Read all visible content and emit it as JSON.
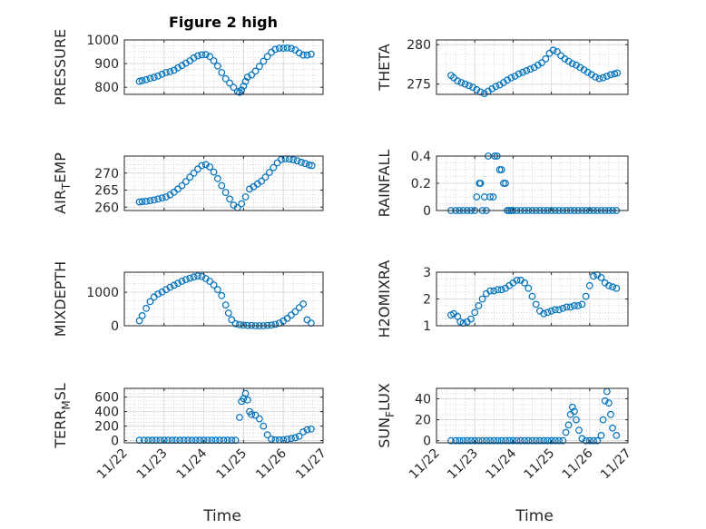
{
  "figure": {
    "title": "Figure 2 high",
    "marker_color": "#0072BD",
    "x_axis": {
      "label": "Time",
      "ticks": [
        "11/22",
        "11/23",
        "11/24",
        "11/25",
        "11/26",
        "11/27"
      ],
      "range": [
        22,
        27
      ]
    }
  },
  "chart_data": [
    {
      "type": "scatter",
      "ylabel": "PRESSURE",
      "ylim": [
        770,
        1000
      ],
      "yticks": [
        800,
        900,
        1000
      ],
      "xlim": [
        22,
        27
      ],
      "x": [
        22.38,
        22.45,
        22.55,
        22.65,
        22.75,
        22.85,
        22.95,
        23.05,
        23.15,
        23.25,
        23.35,
        23.45,
        23.55,
        23.65,
        23.75,
        23.85,
        23.95,
        24.05,
        24.15,
        24.25,
        24.35,
        24.45,
        24.55,
        24.65,
        24.75,
        24.85,
        24.9,
        24.95,
        25.0,
        25.05,
        25.1,
        25.2,
        25.3,
        25.4,
        25.5,
        25.6,
        25.7,
        25.8,
        25.9,
        26.0,
        26.1,
        26.2,
        26.3,
        26.4,
        26.5,
        26.6,
        26.7
      ],
      "y": [
        825,
        828,
        832,
        838,
        842,
        848,
        855,
        862,
        866,
        872,
        882,
        892,
        902,
        912,
        924,
        933,
        937,
        938,
        930,
        912,
        890,
        862,
        836,
        818,
        800,
        782,
        778,
        788,
        805,
        825,
        843,
        852,
        868,
        888,
        910,
        930,
        948,
        960,
        965,
        965,
        966,
        964,
        958,
        945,
        936,
        936,
        940
      ]
    },
    {
      "type": "scatter",
      "ylabel": "THETA",
      "ylim": [
        273.7,
        280.6
      ],
      "yticks": [
        275,
        280
      ],
      "xlim": [
        22,
        27
      ],
      "x": [
        22.38,
        22.45,
        22.55,
        22.65,
        22.75,
        22.85,
        22.95,
        23.05,
        23.15,
        23.25,
        23.35,
        23.45,
        23.55,
        23.65,
        23.75,
        23.85,
        23.95,
        24.05,
        24.15,
        24.25,
        24.35,
        24.45,
        24.55,
        24.65,
        24.75,
        24.85,
        24.95,
        25.05,
        25.15,
        25.25,
        25.35,
        25.45,
        25.55,
        25.65,
        25.75,
        25.85,
        25.95,
        26.05,
        26.15,
        26.25,
        26.35,
        26.45,
        26.55,
        26.65,
        26.72
      ],
      "y": [
        276.1,
        275.8,
        275.4,
        275.2,
        275.0,
        274.8,
        274.6,
        274.3,
        274.0,
        273.8,
        274.1,
        274.4,
        274.7,
        274.9,
        275.2,
        275.5,
        275.8,
        276.0,
        276.3,
        276.5,
        276.7,
        276.9,
        277.1,
        277.4,
        277.7,
        278.2,
        278.9,
        279.3,
        279.1,
        278.6,
        278.2,
        277.9,
        277.6,
        277.4,
        277.1,
        276.8,
        276.5,
        276.2,
        275.9,
        275.7,
        275.8,
        276.0,
        276.2,
        276.3,
        276.4
      ]
    },
    {
      "type": "scatter",
      "ylabel": "AIR_TEMP",
      "ylim": [
        259,
        275
      ],
      "yticks": [
        260,
        265,
        270
      ],
      "xlim": [
        22,
        27
      ],
      "x": [
        22.38,
        22.45,
        22.55,
        22.65,
        22.75,
        22.85,
        22.95,
        23.05,
        23.15,
        23.25,
        23.35,
        23.45,
        23.55,
        23.65,
        23.75,
        23.85,
        23.95,
        24.05,
        24.15,
        24.25,
        24.35,
        24.45,
        24.55,
        24.65,
        24.75,
        24.85,
        24.95,
        25.05,
        25.15,
        25.25,
        25.35,
        25.45,
        25.55,
        25.65,
        25.75,
        25.85,
        25.95,
        26.05,
        26.15,
        26.25,
        26.35,
        26.45,
        26.55,
        26.65,
        26.72
      ],
      "y": [
        261.5,
        261.6,
        261.7,
        261.9,
        262.1,
        262.4,
        262.7,
        263.0,
        263.6,
        264.4,
        265.3,
        266.3,
        267.5,
        268.8,
        270.0,
        271.2,
        272.2,
        272.5,
        271.8,
        270.3,
        268.4,
        266.3,
        264.3,
        262.4,
        260.6,
        259.8,
        261.0,
        263.0,
        265.3,
        266.0,
        266.8,
        267.6,
        268.8,
        270.2,
        271.6,
        273.0,
        274.0,
        274.2,
        274.1,
        273.9,
        273.6,
        273.2,
        272.8,
        272.4,
        272.2
      ]
    },
    {
      "type": "scatter",
      "ylabel": "RAINFALL",
      "ylim": [
        0,
        0.4
      ],
      "yticks": [
        0,
        0.2,
        0.4
      ],
      "xlim": [
        22,
        27
      ],
      "x": [
        22.38,
        22.5,
        22.6,
        22.7,
        22.8,
        22.9,
        23.0,
        23.05,
        23.12,
        23.15,
        23.2,
        23.25,
        23.3,
        23.35,
        23.4,
        23.48,
        23.52,
        23.58,
        23.65,
        23.7,
        23.75,
        23.8,
        23.85,
        23.9,
        23.95,
        24.0,
        24.1,
        24.2,
        24.3,
        24.4,
        24.5,
        24.6,
        24.7,
        24.8,
        24.9,
        25.0,
        25.1,
        25.2,
        25.3,
        25.4,
        25.5,
        25.6,
        25.7,
        25.8,
        25.9,
        26.0,
        26.1,
        26.2,
        26.3,
        26.4,
        26.5,
        26.6,
        26.7
      ],
      "y": [
        0,
        0,
        0,
        0,
        0,
        0,
        0,
        0.1,
        0.2,
        0.2,
        0,
        0.1,
        0,
        0.4,
        0.1,
        0.1,
        0.4,
        0.4,
        0.3,
        0.3,
        0.2,
        0.2,
        0,
        0,
        0,
        0,
        0,
        0,
        0,
        0,
        0,
        0,
        0,
        0,
        0,
        0,
        0,
        0,
        0,
        0,
        0,
        0,
        0,
        0,
        0,
        0,
        0,
        0,
        0,
        0,
        0,
        0,
        0
      ]
    },
    {
      "type": "scatter",
      "ylabel": "MIXDEPTH",
      "ylim": [
        0,
        1600
      ],
      "yticks": [
        0,
        1000
      ],
      "xlim": [
        22,
        27
      ],
      "x": [
        22.38,
        22.45,
        22.55,
        22.65,
        22.75,
        22.85,
        22.95,
        23.05,
        23.15,
        23.25,
        23.35,
        23.45,
        23.55,
        23.65,
        23.75,
        23.85,
        23.95,
        24.05,
        24.15,
        24.25,
        24.35,
        24.45,
        24.55,
        24.62,
        24.7,
        24.8,
        24.9,
        25.0,
        25.1,
        25.2,
        25.3,
        25.4,
        25.5,
        25.6,
        25.7,
        25.8,
        25.9,
        26.0,
        26.1,
        26.2,
        26.3,
        26.4,
        26.5,
        26.6,
        26.7
      ],
      "y": [
        150,
        300,
        520,
        720,
        860,
        950,
        1010,
        1080,
        1150,
        1210,
        1270,
        1330,
        1380,
        1420,
        1460,
        1490,
        1470,
        1410,
        1330,
        1220,
        1080,
        900,
        620,
        380,
        180,
        60,
        30,
        20,
        10,
        10,
        0,
        0,
        0,
        10,
        20,
        40,
        80,
        140,
        220,
        320,
        420,
        540,
        650,
        180,
        80
      ]
    },
    {
      "type": "scatter",
      "ylabel": "H2OMIXRA",
      "ylim": [
        1,
        3
      ],
      "yticks": [
        1,
        2,
        3
      ],
      "xlim": [
        22,
        27
      ],
      "x": [
        22.38,
        22.45,
        22.55,
        22.62,
        22.7,
        22.8,
        22.9,
        23.0,
        23.1,
        23.2,
        23.3,
        23.4,
        23.5,
        23.6,
        23.7,
        23.8,
        23.9,
        24.0,
        24.1,
        24.2,
        24.3,
        24.4,
        24.5,
        24.6,
        24.7,
        24.8,
        24.9,
        25.0,
        25.1,
        25.2,
        25.3,
        25.4,
        25.5,
        25.6,
        25.7,
        25.8,
        25.9,
        26.0,
        26.1,
        26.2,
        26.3,
        26.4,
        26.5,
        26.6,
        26.7
      ],
      "y": [
        1.4,
        1.45,
        1.35,
        1.15,
        1.1,
        1.15,
        1.25,
        1.5,
        1.75,
        2.0,
        2.2,
        2.3,
        2.3,
        2.35,
        2.35,
        2.4,
        2.5,
        2.6,
        2.7,
        2.7,
        2.6,
        2.4,
        2.1,
        1.8,
        1.55,
        1.45,
        1.5,
        1.55,
        1.6,
        1.6,
        1.65,
        1.7,
        1.7,
        1.75,
        1.75,
        1.8,
        2.1,
        2.5,
        2.85,
        2.9,
        2.8,
        2.6,
        2.5,
        2.45,
        2.4
      ]
    },
    {
      "type": "scatter",
      "ylabel": "TERR_MSL",
      "ylim": [
        -30,
        720
      ],
      "yticks": [
        0,
        200,
        400,
        600
      ],
      "xlim": [
        22,
        27
      ],
      "x": [
        22.38,
        22.5,
        22.6,
        22.7,
        22.8,
        22.9,
        23.0,
        23.1,
        23.2,
        23.3,
        23.4,
        23.5,
        23.6,
        23.7,
        23.8,
        23.9,
        24.0,
        24.1,
        24.2,
        24.3,
        24.4,
        24.5,
        24.6,
        24.7,
        24.8,
        24.9,
        24.95,
        25.0,
        25.05,
        25.1,
        25.15,
        25.2,
        25.3,
        25.4,
        25.5,
        25.6,
        25.7,
        25.8,
        25.9,
        26.0,
        26.1,
        26.2,
        26.3,
        26.4,
        26.5,
        26.6,
        26.7
      ],
      "y": [
        5,
        5,
        5,
        5,
        5,
        5,
        5,
        5,
        5,
        5,
        5,
        5,
        5,
        5,
        5,
        5,
        5,
        5,
        5,
        5,
        5,
        5,
        5,
        5,
        5,
        320,
        540,
        580,
        650,
        560,
        400,
        360,
        350,
        300,
        200,
        80,
        20,
        10,
        10,
        10,
        20,
        30,
        40,
        60,
        120,
        150,
        160
      ]
    },
    {
      "type": "scatter",
      "ylabel": "SUN_FLUX",
      "ylim": [
        -2,
        50
      ],
      "yticks": [
        0,
        20,
        40
      ],
      "xlim": [
        22,
        27
      ],
      "x": [
        22.38,
        22.5,
        22.6,
        22.7,
        22.8,
        22.9,
        23.0,
        23.1,
        23.2,
        23.3,
        23.4,
        23.5,
        23.6,
        23.7,
        23.8,
        23.9,
        24.0,
        24.1,
        24.2,
        24.3,
        24.4,
        24.5,
        24.6,
        24.7,
        24.8,
        24.9,
        25.0,
        25.1,
        25.2,
        25.3,
        25.38,
        25.45,
        25.5,
        25.55,
        25.6,
        25.65,
        25.72,
        25.8,
        25.9,
        26.0,
        26.1,
        26.2,
        26.3,
        26.35,
        26.4,
        26.45,
        26.5,
        26.55,
        26.6,
        26.7
      ],
      "y": [
        0,
        0,
        0,
        0,
        0,
        0,
        0,
        0,
        0,
        0,
        0,
        0,
        0,
        0,
        0,
        0,
        0,
        0,
        0,
        0,
        0,
        0,
        0,
        0,
        0,
        0,
        0,
        0,
        0,
        0,
        8,
        15,
        25,
        32,
        28,
        20,
        10,
        2,
        0,
        0,
        0,
        0,
        5,
        20,
        38,
        47,
        36,
        25,
        12,
        5
      ]
    }
  ]
}
